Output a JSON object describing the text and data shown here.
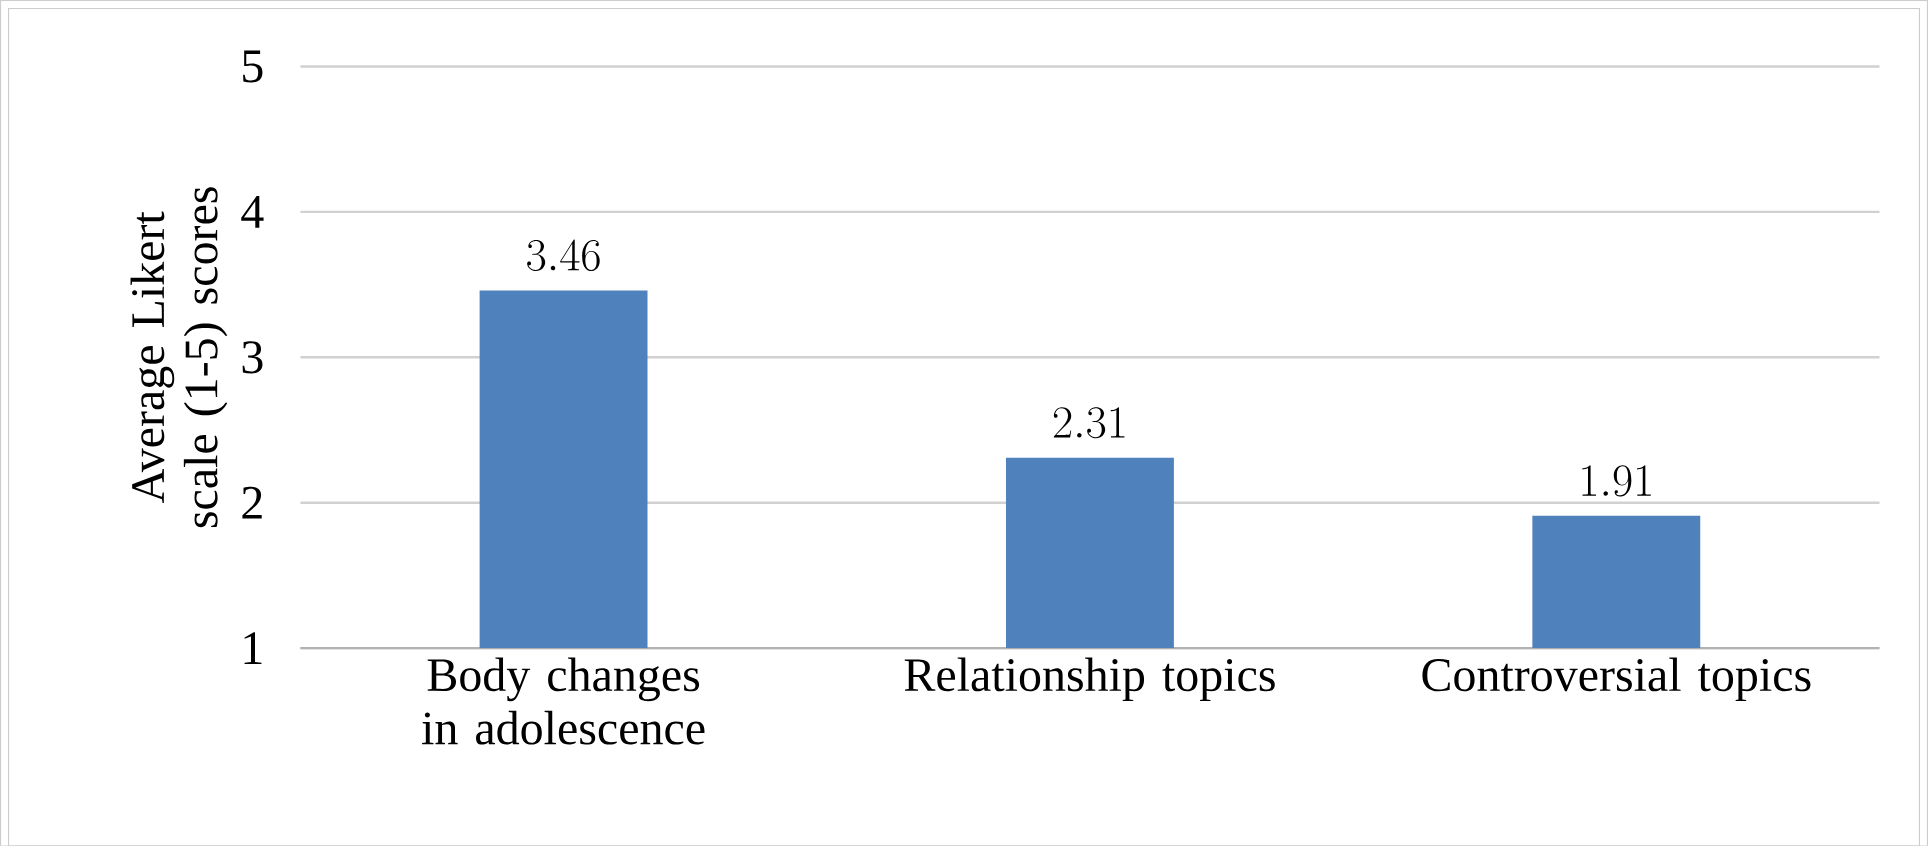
{
  "chart_data": {
    "type": "bar",
    "ylabel": "Average Likert scale (1-5) scores",
    "categories": [
      "Body changes in adolescence",
      "Relationship topics",
      "Controversial topics"
    ],
    "values": [
      3.46,
      2.31,
      1.91
    ],
    "color": "#4f81bd",
    "ylim": [
      1,
      5
    ],
    "yticks": [
      1,
      2,
      3,
      4,
      5
    ],
    "grid": "y",
    "data_labels": true
  }
}
